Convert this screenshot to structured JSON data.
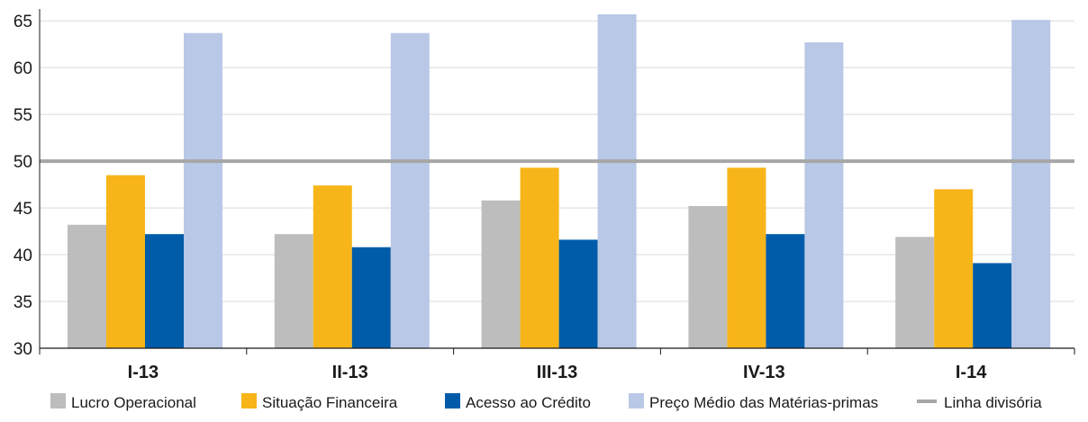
{
  "chart_data": {
    "type": "bar",
    "categories": [
      "I-13",
      "II-13",
      "III-13",
      "IV-13",
      "I-14"
    ],
    "series": [
      {
        "name": "Lucro Operacional",
        "color": "#bdbdbd",
        "values": [
          43.2,
          42.2,
          45.8,
          45.2,
          41.9
        ]
      },
      {
        "name": "Situação Financeira",
        "color": "#f7b519",
        "values": [
          48.5,
          47.4,
          49.3,
          49.3,
          47.0
        ]
      },
      {
        "name": "Acesso ao Crédito",
        "color": "#005ca8",
        "values": [
          42.2,
          40.8,
          41.6,
          42.2,
          39.1
        ]
      },
      {
        "name": "Preço Médio das Matérias-primas",
        "color": "#b9c8e6",
        "values": [
          63.7,
          63.7,
          65.7,
          62.7,
          65.1
        ]
      }
    ],
    "reference_line": {
      "name": "Linha divisória",
      "value": 50,
      "color": "#a6a6a6"
    },
    "yticks": [
      "30",
      "35",
      "40",
      "45",
      "50",
      "55",
      "60",
      "65"
    ],
    "ylim": [
      30,
      65.5
    ],
    "grid": true,
    "legend": "bottom",
    "title": "",
    "xlabel": "",
    "ylabel": ""
  }
}
